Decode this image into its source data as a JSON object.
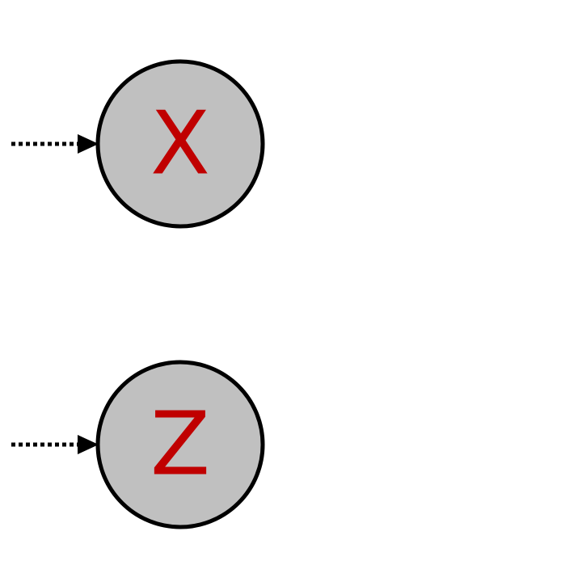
{
  "diagram": {
    "nodes": [
      {
        "id": "X",
        "label": "X",
        "fill": "#c0c0c0",
        "stroke": "#000000",
        "label_color": "#c00000"
      },
      {
        "id": "Z",
        "label": "Z",
        "fill": "#c0c0c0",
        "stroke": "#000000",
        "label_color": "#c00000"
      }
    ],
    "edges": [
      {
        "to": "X",
        "style": "dotted",
        "arrowhead": "filled-triangle"
      },
      {
        "to": "Z",
        "style": "dotted",
        "arrowhead": "filled-triangle"
      }
    ]
  }
}
